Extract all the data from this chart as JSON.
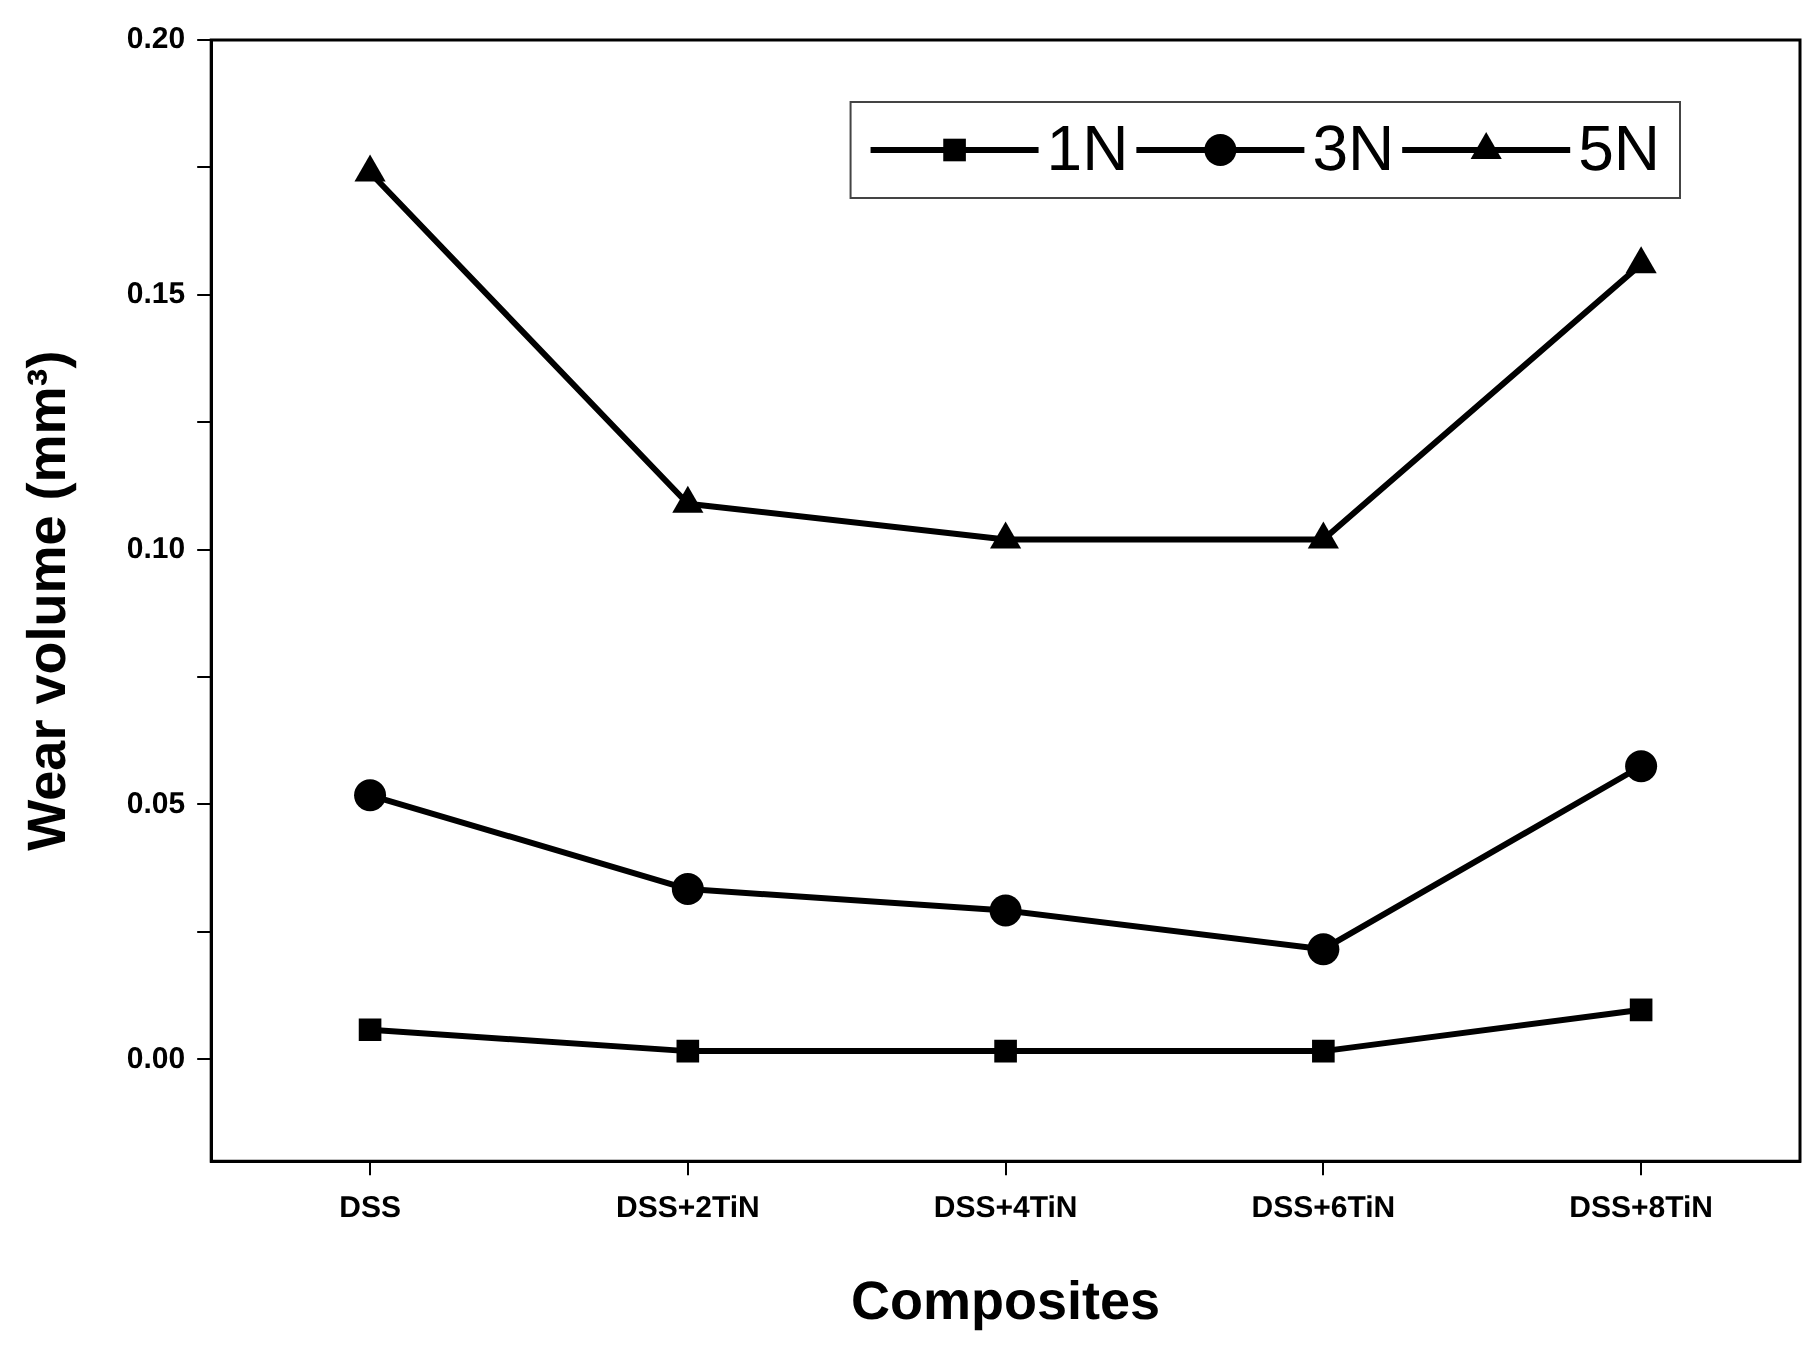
{
  "chart_data": {
    "type": "line",
    "xlabel": "Composites",
    "ylabel": "Wear volume (mm³)",
    "categories": [
      "DSS",
      "DSS+2TiN",
      "DSS+4TiN",
      "DSS+6TiN",
      "DSS+8TiN"
    ],
    "series": [
      {
        "name": "1N",
        "color": "#000000",
        "marker": "square",
        "values": [
          0.0058,
          0.0016,
          0.0016,
          0.0016,
          0.0097
        ]
      },
      {
        "name": "3N",
        "color": "#000000",
        "marker": "circle",
        "values": [
          0.0518,
          0.0334,
          0.0292,
          0.0216,
          0.0575
        ]
      },
      {
        "name": "5N",
        "color": "#000000",
        "marker": "triangle",
        "values": [
          0.174,
          0.109,
          0.102,
          0.102,
          0.156
        ]
      }
    ],
    "ylim": [
      -0.02,
      0.2
    ],
    "yticks": [
      {
        "value": 0,
        "label": "0.00"
      },
      {
        "value": 0.025,
        "label": null
      },
      {
        "value": 0.05,
        "label": "0.05"
      },
      {
        "value": 0.075,
        "label": null
      },
      {
        "value": 0.1,
        "label": "0.10"
      },
      {
        "value": 0.125,
        "label": null
      },
      {
        "value": 0.15,
        "label": "0.15"
      },
      {
        "value": 0.175,
        "label": null
      },
      {
        "value": 0.2,
        "label": "0.20"
      }
    ],
    "grid": false,
    "legend": "top right",
    "line_style": "solid"
  }
}
